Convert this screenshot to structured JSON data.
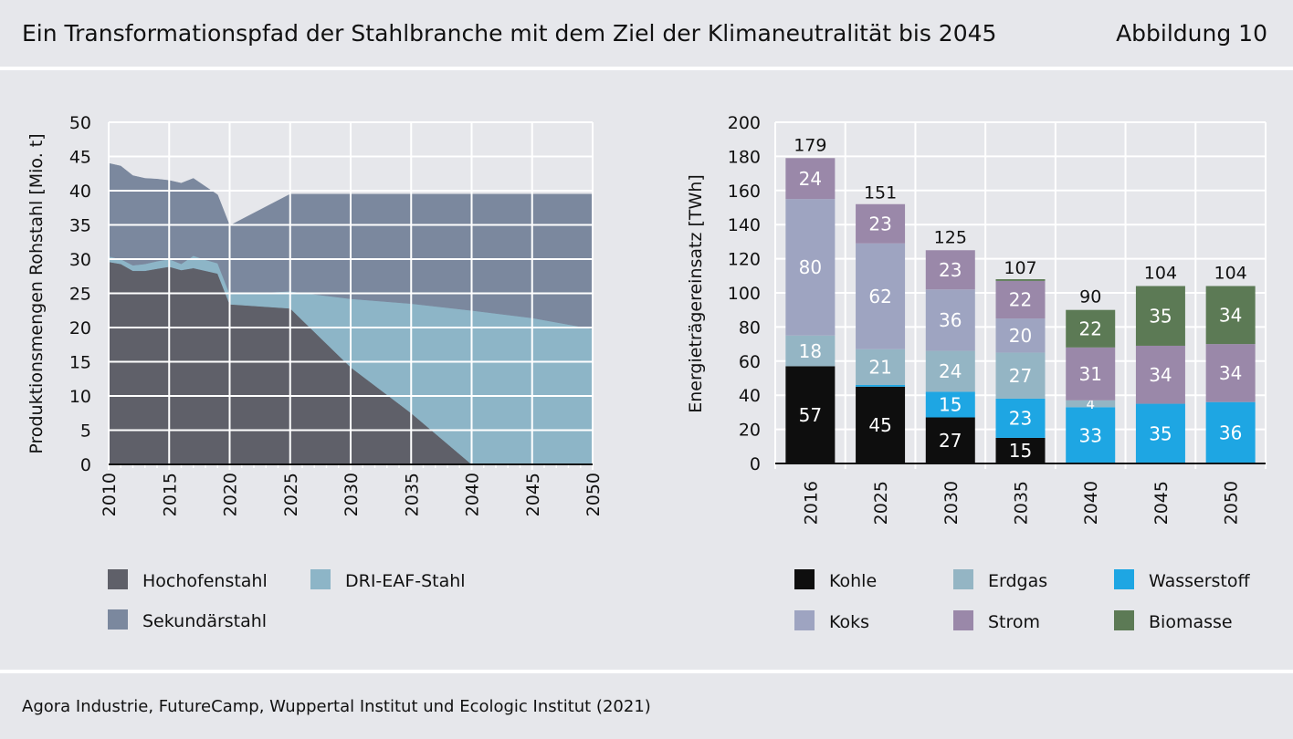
{
  "header": {
    "title": "Ein Transformationspfad der Stahlbranche mit dem Ziel der Klimaneutralität bis 2045",
    "figure_label": "Abbildung 10"
  },
  "footer": {
    "source": "Agora Industrie, FutureCamp, Wuppertal Institut und Ecologic Institut (2021)"
  },
  "chart_data": [
    {
      "type": "area",
      "ylabel": "Produktionsmengen Rohstahl [Mio. t]",
      "xlabel": "",
      "xlim": [
        2010,
        2050
      ],
      "ylim": [
        0,
        50
      ],
      "yticks": [
        0,
        5,
        10,
        15,
        20,
        25,
        30,
        35,
        40,
        45,
        50
      ],
      "xticks": [
        2010,
        2015,
        2020,
        2025,
        2030,
        2035,
        2040,
        2045,
        2050
      ],
      "stacked": true,
      "grid": true,
      "legend_position": "bottom",
      "series": [
        {
          "name": "Hochofenstahl",
          "color": "#5f6069",
          "points": [
            [
              2010,
              29.6
            ],
            [
              2011,
              29.3
            ],
            [
              2012,
              28.3
            ],
            [
              2013,
              28.3
            ],
            [
              2014,
              28.6
            ],
            [
              2015,
              28.9
            ],
            [
              2016,
              28.4
            ],
            [
              2017,
              28.7
            ],
            [
              2018,
              28.3
            ],
            [
              2019,
              27.9
            ],
            [
              2020,
              23.4
            ],
            [
              2025,
              22.8
            ],
            [
              2030,
              14.2
            ],
            [
              2035,
              7.5
            ],
            [
              2040,
              0
            ],
            [
              2045,
              0
            ],
            [
              2050,
              0
            ]
          ]
        },
        {
          "name": "DRI-EAF-Stahl",
          "color": "#8db5c7",
          "points": [
            [
              2010,
              0.8
            ],
            [
              2011,
              0.7
            ],
            [
              2012,
              0.8
            ],
            [
              2013,
              1.0
            ],
            [
              2014,
              1.1
            ],
            [
              2015,
              1.1
            ],
            [
              2016,
              0.9
            ],
            [
              2017,
              1.8
            ],
            [
              2018,
              1.6
            ],
            [
              2019,
              1.5
            ],
            [
              2020,
              1.5
            ],
            [
              2025,
              2.5
            ],
            [
              2030,
              10.0
            ],
            [
              2035,
              16.0
            ],
            [
              2040,
              22.5
            ],
            [
              2045,
              21.4
            ],
            [
              2050,
              19.8
            ]
          ]
        },
        {
          "name": "Sekundärstahl",
          "color": "#7b889e",
          "points": [
            [
              2010,
              13.6
            ],
            [
              2011,
              13.6
            ],
            [
              2012,
              13.1
            ],
            [
              2013,
              12.5
            ],
            [
              2014,
              12.0
            ],
            [
              2015,
              11.5
            ],
            [
              2016,
              11.8
            ],
            [
              2017,
              11.3
            ],
            [
              2018,
              10.7
            ],
            [
              2019,
              10.0
            ],
            [
              2020,
              10.0
            ],
            [
              2025,
              14.2
            ],
            [
              2030,
              15.3
            ],
            [
              2035,
              16.0
            ],
            [
              2040,
              17.0
            ],
            [
              2045,
              18.1
            ],
            [
              2050,
              19.7
            ]
          ]
        }
      ]
    },
    {
      "type": "bar",
      "stacked": true,
      "ylabel": "Energieträgereinsatz [TWh]",
      "xlabel": "",
      "ylim": [
        0,
        200
      ],
      "yticks": [
        0,
        20,
        40,
        60,
        80,
        100,
        120,
        140,
        160,
        180,
        200
      ],
      "grid": true,
      "legend_position": "bottom",
      "categories": [
        "2016",
        "2025",
        "2030",
        "2035",
        "2040",
        "2045",
        "2050"
      ],
      "totals": [
        179,
        151,
        125,
        107,
        90,
        104,
        104
      ],
      "series": [
        {
          "name": "Kohle",
          "color": "#0e0e0e",
          "label_color": "#ffffff",
          "values": [
            57,
            45,
            27,
            15,
            0,
            0,
            0
          ]
        },
        {
          "name": "Wasserstoff",
          "color": "#1ea6e3",
          "label_color": "#ffffff",
          "values": [
            0,
            1,
            15,
            23,
            33,
            35,
            36
          ]
        },
        {
          "name": "Erdgas",
          "color": "#94b5c4",
          "label_color": "#ffffff",
          "values": [
            18,
            21,
            24,
            27,
            4,
            0,
            0
          ]
        },
        {
          "name": "Koks",
          "color": "#9ea4c1",
          "label_color": "#ffffff",
          "values": [
            80,
            62,
            36,
            20,
            0,
            0,
            0
          ]
        },
        {
          "name": "Strom",
          "color": "#9a88a9",
          "label_color": "#ffffff",
          "values": [
            24,
            23,
            23,
            22,
            31,
            34,
            34
          ]
        },
        {
          "name": "Biomasse",
          "color": "#5c7a55",
          "label_color": "#ffffff",
          "values": [
            0,
            0,
            0,
            1,
            22,
            35,
            34
          ]
        }
      ],
      "label_threshold": 3,
      "stack_order_note": ""
    }
  ],
  "legends": {
    "left": [
      {
        "label": "Hochofenstahl",
        "color": "#5f6069"
      },
      {
        "label": "DRI-EAF-Stahl",
        "color": "#8db5c7"
      },
      {
        "label": "Sekundärstahl",
        "color": "#7b889e"
      }
    ],
    "right": [
      {
        "label": "Kohle",
        "color": "#0e0e0e"
      },
      {
        "label": "Erdgas",
        "color": "#94b5c4"
      },
      {
        "label": "Wasserstoff",
        "color": "#1ea6e3"
      },
      {
        "label": "Koks",
        "color": "#9ea4c1"
      },
      {
        "label": "Strom",
        "color": "#9a88a9"
      },
      {
        "label": "Biomasse",
        "color": "#5c7a55"
      }
    ]
  }
}
